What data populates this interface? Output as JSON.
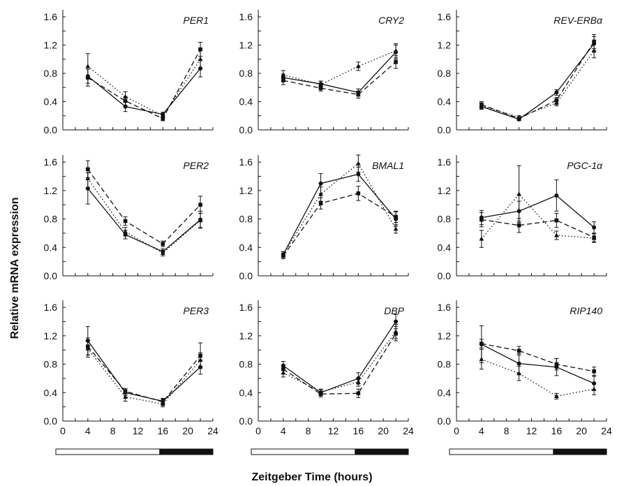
{
  "figure": {
    "ylabel": "Relative mRNA expression",
    "xlabel": "Zeitgeber Time (hours)"
  },
  "chart_data": [
    {
      "type": "line",
      "title": "PER1",
      "x": [
        4,
        10,
        16,
        22
      ],
      "ylim": [
        0,
        1.7
      ],
      "yticks": [
        "0.0",
        "0.4",
        "0.8",
        "1.2",
        "1.6"
      ],
      "series": [
        {
          "style": "solid",
          "marker": "circle",
          "values": [
            0.76,
            0.33,
            0.22,
            0.87
          ],
          "errors": [
            0.1,
            0.07,
            0.03,
            0.12
          ]
        },
        {
          "style": "dashed",
          "marker": "square",
          "values": [
            0.74,
            0.41,
            0.16,
            1.14
          ],
          "errors": [
            0.12,
            0.06,
            0.03,
            0.1
          ]
        },
        {
          "style": "dotted",
          "marker": "triangle",
          "values": [
            0.9,
            0.47,
            0.2,
            1.0
          ],
          "errors": [
            0.18,
            0.07,
            0.03,
            0.14
          ]
        }
      ]
    },
    {
      "type": "line",
      "title": "CRY2",
      "x": [
        4,
        10,
        16,
        22
      ],
      "ylim": [
        0,
        1.7
      ],
      "yticks": [
        "0.0",
        "0.4",
        "0.8",
        "1.2",
        "1.6"
      ],
      "series": [
        {
          "style": "solid",
          "marker": "circle",
          "values": [
            0.74,
            0.65,
            0.53,
            1.1
          ],
          "errors": [
            0.05,
            0.04,
            0.05,
            0.1
          ]
        },
        {
          "style": "dashed",
          "marker": "square",
          "values": [
            0.7,
            0.59,
            0.5,
            0.96
          ],
          "errors": [
            0.06,
            0.04,
            0.05,
            0.09
          ]
        },
        {
          "style": "dotted",
          "marker": "triangle",
          "values": [
            0.78,
            0.64,
            0.9,
            1.12
          ],
          "errors": [
            0.06,
            0.05,
            0.06,
            0.1
          ]
        }
      ]
    },
    {
      "type": "line",
      "title": "REV-ERBα",
      "x": [
        4,
        10,
        16,
        22
      ],
      "ylim": [
        0,
        1.7
      ],
      "yticks": [
        "0.0",
        "0.4",
        "0.8",
        "1.2",
        "1.6"
      ],
      "series": [
        {
          "style": "solid",
          "marker": "circle",
          "values": [
            0.33,
            0.15,
            0.53,
            1.22
          ],
          "errors": [
            0.04,
            0.02,
            0.04,
            0.1
          ]
        },
        {
          "style": "dashed",
          "marker": "square",
          "values": [
            0.36,
            0.16,
            0.42,
            1.25
          ],
          "errors": [
            0.04,
            0.02,
            0.04,
            0.1
          ]
        },
        {
          "style": "dotted",
          "marker": "triangle",
          "values": [
            0.34,
            0.18,
            0.38,
            1.12
          ],
          "errors": [
            0.04,
            0.02,
            0.04,
            0.1
          ]
        }
      ]
    },
    {
      "type": "line",
      "title": "PER2",
      "x": [
        4,
        10,
        16,
        22
      ],
      "ylim": [
        0,
        1.7
      ],
      "yticks": [
        "0.0",
        "0.4",
        "0.8",
        "1.2",
        "1.6"
      ],
      "series": [
        {
          "style": "solid",
          "marker": "circle",
          "values": [
            1.23,
            0.58,
            0.34,
            0.79
          ],
          "errors": [
            0.22,
            0.06,
            0.04,
            0.12
          ]
        },
        {
          "style": "dashed",
          "marker": "square",
          "values": [
            1.5,
            0.77,
            0.45,
            1.0
          ],
          "errors": [
            0.12,
            0.06,
            0.04,
            0.12
          ]
        },
        {
          "style": "dotted",
          "marker": "triangle",
          "values": [
            1.37,
            0.62,
            0.32,
            0.78
          ],
          "errors": [
            0.14,
            0.06,
            0.04,
            0.1
          ]
        }
      ]
    },
    {
      "type": "line",
      "title": "BMAL1",
      "x": [
        4,
        10,
        16,
        22
      ],
      "ylim": [
        0,
        1.7
      ],
      "yticks": [
        "0.0",
        "0.4",
        "0.8",
        "1.2",
        "1.6"
      ],
      "series": [
        {
          "style": "solid",
          "marker": "circle",
          "values": [
            0.3,
            1.3,
            1.43,
            0.8
          ],
          "errors": [
            0.04,
            0.14,
            0.1,
            0.1
          ]
        },
        {
          "style": "dashed",
          "marker": "square",
          "values": [
            0.28,
            1.02,
            1.16,
            0.83
          ],
          "errors": [
            0.04,
            0.08,
            0.1,
            0.08
          ]
        },
        {
          "style": "dotted",
          "marker": "triangle",
          "values": [
            0.3,
            1.15,
            1.58,
            0.66
          ],
          "errors": [
            0.04,
            0.1,
            0.12,
            0.06
          ]
        }
      ]
    },
    {
      "type": "line",
      "title": "PGC-1α",
      "x": [
        4,
        10,
        16,
        22
      ],
      "ylim": [
        0,
        1.7
      ],
      "yticks": [
        "0.0",
        "0.4",
        "0.8",
        "1.2",
        "1.6"
      ],
      "series": [
        {
          "style": "solid",
          "marker": "circle",
          "values": [
            0.82,
            0.91,
            1.13,
            0.68
          ],
          "errors": [
            0.1,
            0.14,
            0.22,
            0.08
          ]
        },
        {
          "style": "dashed",
          "marker": "square",
          "values": [
            0.79,
            0.71,
            0.78,
            0.54
          ],
          "errors": [
            0.1,
            0.1,
            0.1,
            0.06
          ]
        },
        {
          "style": "dotted",
          "marker": "triangle",
          "values": [
            0.52,
            1.15,
            0.57,
            0.53
          ],
          "errors": [
            0.12,
            0.4,
            0.06,
            0.06
          ]
        }
      ]
    },
    {
      "type": "line",
      "title": "PER3",
      "x": [
        4,
        10,
        16,
        22
      ],
      "ylim": [
        0,
        1.7
      ],
      "yticks": [
        "0.0",
        "0.4",
        "0.8",
        "1.2",
        "1.6"
      ],
      "series": [
        {
          "style": "solid",
          "marker": "circle",
          "values": [
            1.13,
            0.4,
            0.28,
            0.76
          ],
          "errors": [
            0.2,
            0.04,
            0.04,
            0.1
          ]
        },
        {
          "style": "dashed",
          "marker": "square",
          "values": [
            1.05,
            0.42,
            0.27,
            0.92
          ],
          "errors": [
            0.12,
            0.04,
            0.04,
            0.18
          ]
        },
        {
          "style": "dotted",
          "marker": "triangle",
          "values": [
            1.02,
            0.34,
            0.24,
            0.86
          ],
          "errors": [
            0.12,
            0.06,
            0.04,
            0.1
          ]
        }
      ]
    },
    {
      "type": "line",
      "title": "DBP",
      "x": [
        4,
        10,
        16,
        22
      ],
      "ylim": [
        0,
        1.7
      ],
      "yticks": [
        "0.0",
        "0.4",
        "0.8",
        "1.2",
        "1.6"
      ],
      "series": [
        {
          "style": "solid",
          "marker": "circle",
          "values": [
            0.78,
            0.4,
            0.6,
            1.4
          ],
          "errors": [
            0.06,
            0.04,
            0.08,
            0.1
          ]
        },
        {
          "style": "dashed",
          "marker": "square",
          "values": [
            0.73,
            0.38,
            0.39,
            1.23
          ],
          "errors": [
            0.06,
            0.04,
            0.06,
            0.1
          ]
        },
        {
          "style": "dotted",
          "marker": "triangle",
          "values": [
            0.68,
            0.41,
            0.55,
            1.26
          ],
          "errors": [
            0.06,
            0.04,
            0.06,
            0.1
          ]
        }
      ]
    },
    {
      "type": "line",
      "title": "RIP140",
      "x": [
        4,
        10,
        16,
        22
      ],
      "ylim": [
        0,
        1.7
      ],
      "yticks": [
        "0.0",
        "0.4",
        "0.8",
        "1.2",
        "1.6"
      ],
      "series": [
        {
          "style": "solid",
          "marker": "circle",
          "values": [
            1.08,
            0.81,
            0.76,
            0.53
          ],
          "errors": [
            0.26,
            0.14,
            0.12,
            0.1
          ]
        },
        {
          "style": "dashed",
          "marker": "square",
          "values": [
            1.09,
            0.99,
            0.8,
            0.7
          ],
          "errors": [
            0.06,
            0.06,
            0.08,
            0.06
          ]
        },
        {
          "style": "dotted",
          "marker": "triangle",
          "values": [
            0.87,
            0.67,
            0.35,
            0.45
          ],
          "errors": [
            0.14,
            0.1,
            0.04,
            0.08
          ]
        }
      ]
    }
  ],
  "light_dark_bar": {
    "light_hours": [
      0,
      15.5
    ],
    "dark_hours": [
      15.5,
      24
    ]
  },
  "x_axis": {
    "ticks": [
      "0",
      "4",
      "8",
      "12",
      "16",
      "20",
      "24"
    ],
    "values": [
      0,
      4,
      8,
      12,
      16,
      20,
      24
    ]
  }
}
